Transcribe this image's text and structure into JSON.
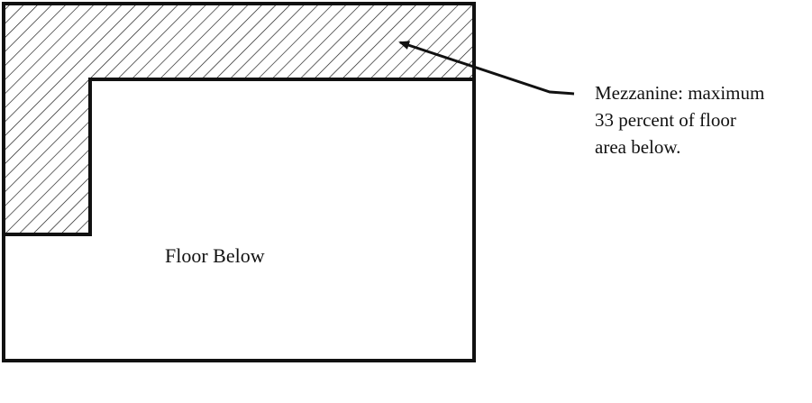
{
  "labels": {
    "floor_below": "Floor Below",
    "callout_lines": [
      "Mezzanine: maximum",
      "33 percent of floor",
      "area below."
    ]
  },
  "colors": {
    "stroke": "#111111",
    "background": "#ffffff"
  }
}
